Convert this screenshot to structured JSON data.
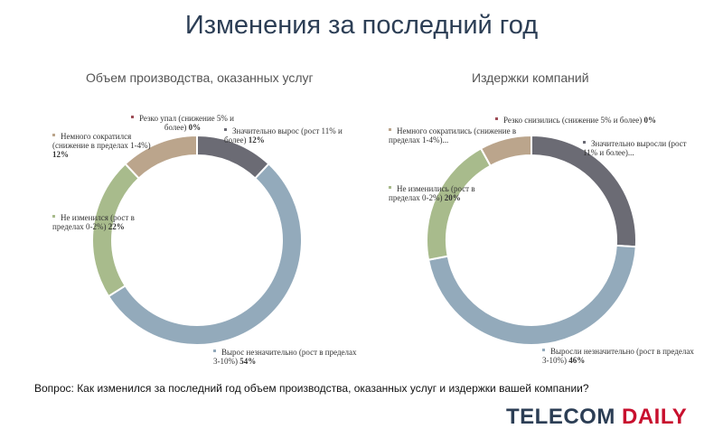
{
  "title": "Изменения за последний год",
  "question": "Вопрос: Как изменился за последний год объем производства, оказанных услуг и издержки вашей компании?",
  "logo": {
    "part1": "TELECOM",
    "part2": "DAILY"
  },
  "colors": {
    "logo_blue": "#2c3e55",
    "logo_red": "#c8102e"
  },
  "chart_data": [
    {
      "type": "pie",
      "title": "Объем производства, оказанных услуг",
      "slices": [
        {
          "label": "Резко упал (снижение 5% и более)",
          "value": 0,
          "value_label": "0%",
          "color": "#9e4d57"
        },
        {
          "label": "Значительно вырос (рост 11% и более)",
          "value": 12,
          "value_label": "12%",
          "color": "#6b6b74"
        },
        {
          "label": "Вырос незначительно (рост в пределах 3-10%)",
          "value": 54,
          "value_label": "54%",
          "color": "#93aabb"
        },
        {
          "label": "Не изменился (рост в пределах 0-2%)",
          "value": 22,
          "value_label": "22%",
          "color": "#a8bb8c"
        },
        {
          "label": "Немного сократился (снижение в пределах 1-4%)",
          "value": 12,
          "value_label": "12%",
          "color": "#bba58c"
        }
      ]
    },
    {
      "type": "pie",
      "title": "Издержки компаний",
      "slices": [
        {
          "label": "Резко снизились (снижение 5% и более)",
          "value": 0,
          "value_label": "0%",
          "color": "#9e4d57"
        },
        {
          "label": "Значительно выросли (рост 11% и более)...",
          "value": 26,
          "value_label": "",
          "color": "#6b6b74"
        },
        {
          "label": "Выросли незначительно (рост в пределах 3-10%)",
          "value": 46,
          "value_label": "46%",
          "color": "#93aabb"
        },
        {
          "label": "Не изменились (рост в пределах 0-2%)",
          "value": 20,
          "value_label": "20%",
          "color": "#a8bb8c"
        },
        {
          "label": "Немного сократились (снижение в пределах 1-4%)...",
          "value": 8,
          "value_label": "",
          "color": "#bba58c"
        }
      ]
    }
  ]
}
